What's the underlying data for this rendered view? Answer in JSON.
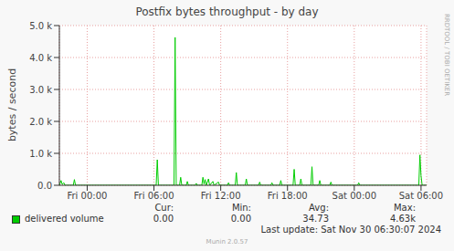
{
  "chart_data": {
    "type": "line",
    "title": "Postfix bytes throughput - by day",
    "y_label": "bytes / second",
    "watermark": "RRDTOOL / TOBI OETIKER",
    "footer": "Munin 2.0.57",
    "last_update": "Last update: Sat Nov 30 06:30:07 2024",
    "stats": {
      "headers": [
        "Cur:",
        "Min:",
        "Avg:",
        "Max:"
      ],
      "values": [
        "0.00",
        "0.00",
        "34.73",
        "4.63k"
      ]
    },
    "xlim": [
      -2.5,
      30.5
    ],
    "xticks": [
      {
        "value": 0,
        "label": "Fri 00:00"
      },
      {
        "value": 6,
        "label": "Fri 06:00"
      },
      {
        "value": 12,
        "label": "Fri 12:00"
      },
      {
        "value": 18,
        "label": "Fri 18:00"
      },
      {
        "value": 24,
        "label": "Sat 00:00"
      },
      {
        "value": 30,
        "label": "Sat 06:00"
      }
    ],
    "ylim": [
      0,
      5000
    ],
    "yticks": [
      {
        "value": 0,
        "label": "0.0"
      },
      {
        "value": 1000,
        "label": "1.0 k"
      },
      {
        "value": 2000,
        "label": "2.0 k"
      },
      {
        "value": 3000,
        "label": "3.0 k"
      },
      {
        "value": 4000,
        "label": "4.0 k"
      },
      {
        "value": 5000,
        "label": "5.0 k"
      }
    ],
    "grid": true,
    "x": [
      -2.5,
      -2.35,
      -2.25,
      -2.1,
      -2.0,
      -1.25,
      -1.15,
      -1.05,
      6.2,
      6.3,
      6.4,
      7.8,
      7.9,
      8.0,
      8.3,
      8.4,
      8.5,
      8.9,
      9.0,
      9.1,
      9.7,
      9.8,
      9.9,
      10.3,
      10.4,
      10.5,
      10.6,
      10.7,
      10.9,
      11.0,
      11.3,
      11.4,
      11.8,
      11.9,
      12.6,
      12.7,
      12.8,
      13.3,
      13.4,
      13.5,
      14.2,
      14.3,
      14.4,
      15.4,
      15.5,
      15.6,
      16.5,
      16.6,
      16.7,
      17.3,
      17.4,
      17.5,
      18.5,
      18.6,
      18.7,
      19.1,
      19.2,
      19.3,
      20.1,
      20.2,
      20.3,
      20.8,
      20.9,
      21.0,
      21.8,
      21.9,
      22.0,
      24.3,
      24.4,
      24.5,
      29.8,
      29.9,
      30.0,
      30.1,
      30.5
    ],
    "series": [
      {
        "name": "delivered volume",
        "color": "#00cc00",
        "values": [
          0,
          150,
          30,
          80,
          0,
          0,
          180,
          0,
          0,
          800,
          0,
          0,
          4630,
          0,
          0,
          250,
          0,
          0,
          120,
          0,
          0,
          60,
          0,
          0,
          250,
          40,
          180,
          0,
          200,
          0,
          120,
          0,
          100,
          0,
          0,
          80,
          0,
          0,
          400,
          0,
          0,
          200,
          0,
          0,
          100,
          0,
          0,
          80,
          0,
          0,
          150,
          0,
          0,
          500,
          0,
          0,
          200,
          0,
          0,
          580,
          0,
          0,
          150,
          0,
          0,
          100,
          0,
          0,
          80,
          0,
          0,
          950,
          300,
          0,
          0
        ]
      }
    ]
  }
}
